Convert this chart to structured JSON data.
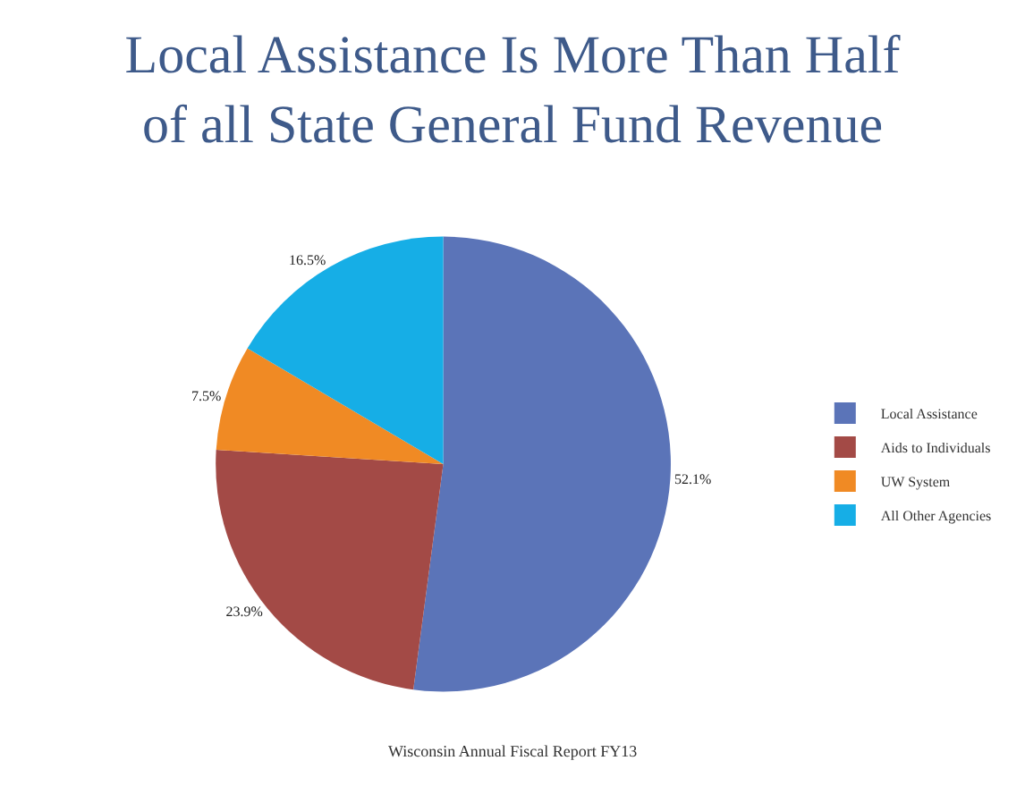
{
  "chart_data": {
    "type": "pie",
    "title": "Local Assistance Is More Than Half\nof all State General Fund Revenue",
    "categories": [
      "Local Assistance",
      "Aids to Individuals",
      "UW System",
      "All Other Agencies"
    ],
    "values": [
      52.1,
      23.9,
      7.5,
      16.5
    ],
    "value_labels": [
      "52.1%",
      "23.9%",
      "7.5%",
      "16.5%"
    ],
    "colors": [
      "#5b74b8",
      "#a34a46",
      "#f08a24",
      "#16aee6"
    ],
    "legend": "right",
    "annotations": [
      "Wisconsin Annual Fiscal Report FY13"
    ]
  }
}
